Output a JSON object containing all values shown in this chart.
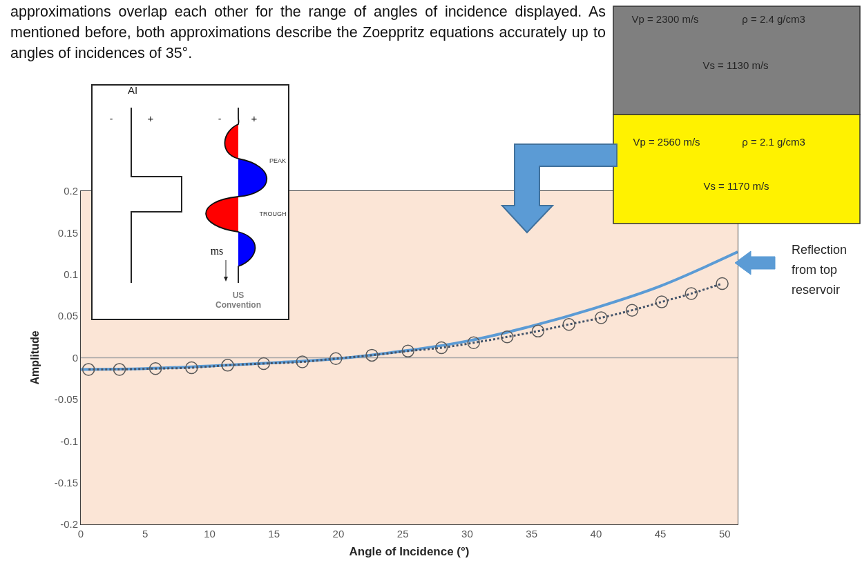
{
  "chart_data": {
    "type": "line",
    "xlabel": "Angle of Incidence (°)",
    "ylabel": "Amplitude",
    "xlim": [
      0,
      51
    ],
    "xticks": [
      0,
      5,
      10,
      15,
      20,
      25,
      30,
      35,
      40,
      45,
      50
    ],
    "ylim": [
      -0.2,
      0.2
    ],
    "yticks": [
      -0.2,
      -0.15,
      -0.1,
      -0.05,
      0,
      0.05,
      0.1,
      0.15,
      0.2
    ],
    "grid": false,
    "series": [
      {
        "color": "#5b9bd5",
        "line_style": "solid",
        "marker": "none",
        "x": [
          0,
          5,
          10,
          15,
          20,
          25,
          30,
          35,
          40,
          45,
          51
        ],
        "values": [
          -0.014,
          -0.013,
          -0.01,
          -0.006,
          -0.001,
          0.008,
          0.02,
          0.038,
          0.06,
          0.086,
          0.127
        ]
      },
      {
        "color": "#44546a",
        "line_style": "dotted",
        "marker": "circle",
        "x": [
          0.6,
          3,
          5.8,
          8.6,
          11.4,
          14.2,
          17.2,
          19.8,
          22.6,
          25.4,
          28,
          30.5,
          33.1,
          35.5,
          37.9,
          40.4,
          42.8,
          45.1,
          47.4,
          49.8
        ],
        "values": [
          -0.014,
          -0.014,
          -0.013,
          -0.012,
          -0.009,
          -0.007,
          -0.005,
          -0.001,
          0.003,
          0.008,
          0.012,
          0.018,
          0.025,
          0.032,
          0.04,
          0.048,
          0.057,
          0.067,
          0.077,
          0.089
        ]
      }
    ],
    "ref_lines": [
      {
        "axis": "y",
        "value": 0,
        "color": "#a6a6a6"
      }
    ],
    "annotations": [
      "approximations overlap each other for the range of angles of incidence displayed. As mentioned before, both approximations describe the Zoeppritz equations accurately up to angles of incidences of 35°.",
      "Vp = 2300 m/s",
      "ρ = 2.4 g/cm3",
      "Vs = 1130 m/s",
      "Vp = 2560 m/s",
      "ρ = 2.1 g/cm3",
      "Vs = 1170 m/s",
      "AI",
      "-",
      "+",
      "-",
      "+",
      "PEAK",
      "TROUGH",
      "ms",
      "US\nConvention",
      "Reflection\nfrom top\nreservoir"
    ]
  }
}
